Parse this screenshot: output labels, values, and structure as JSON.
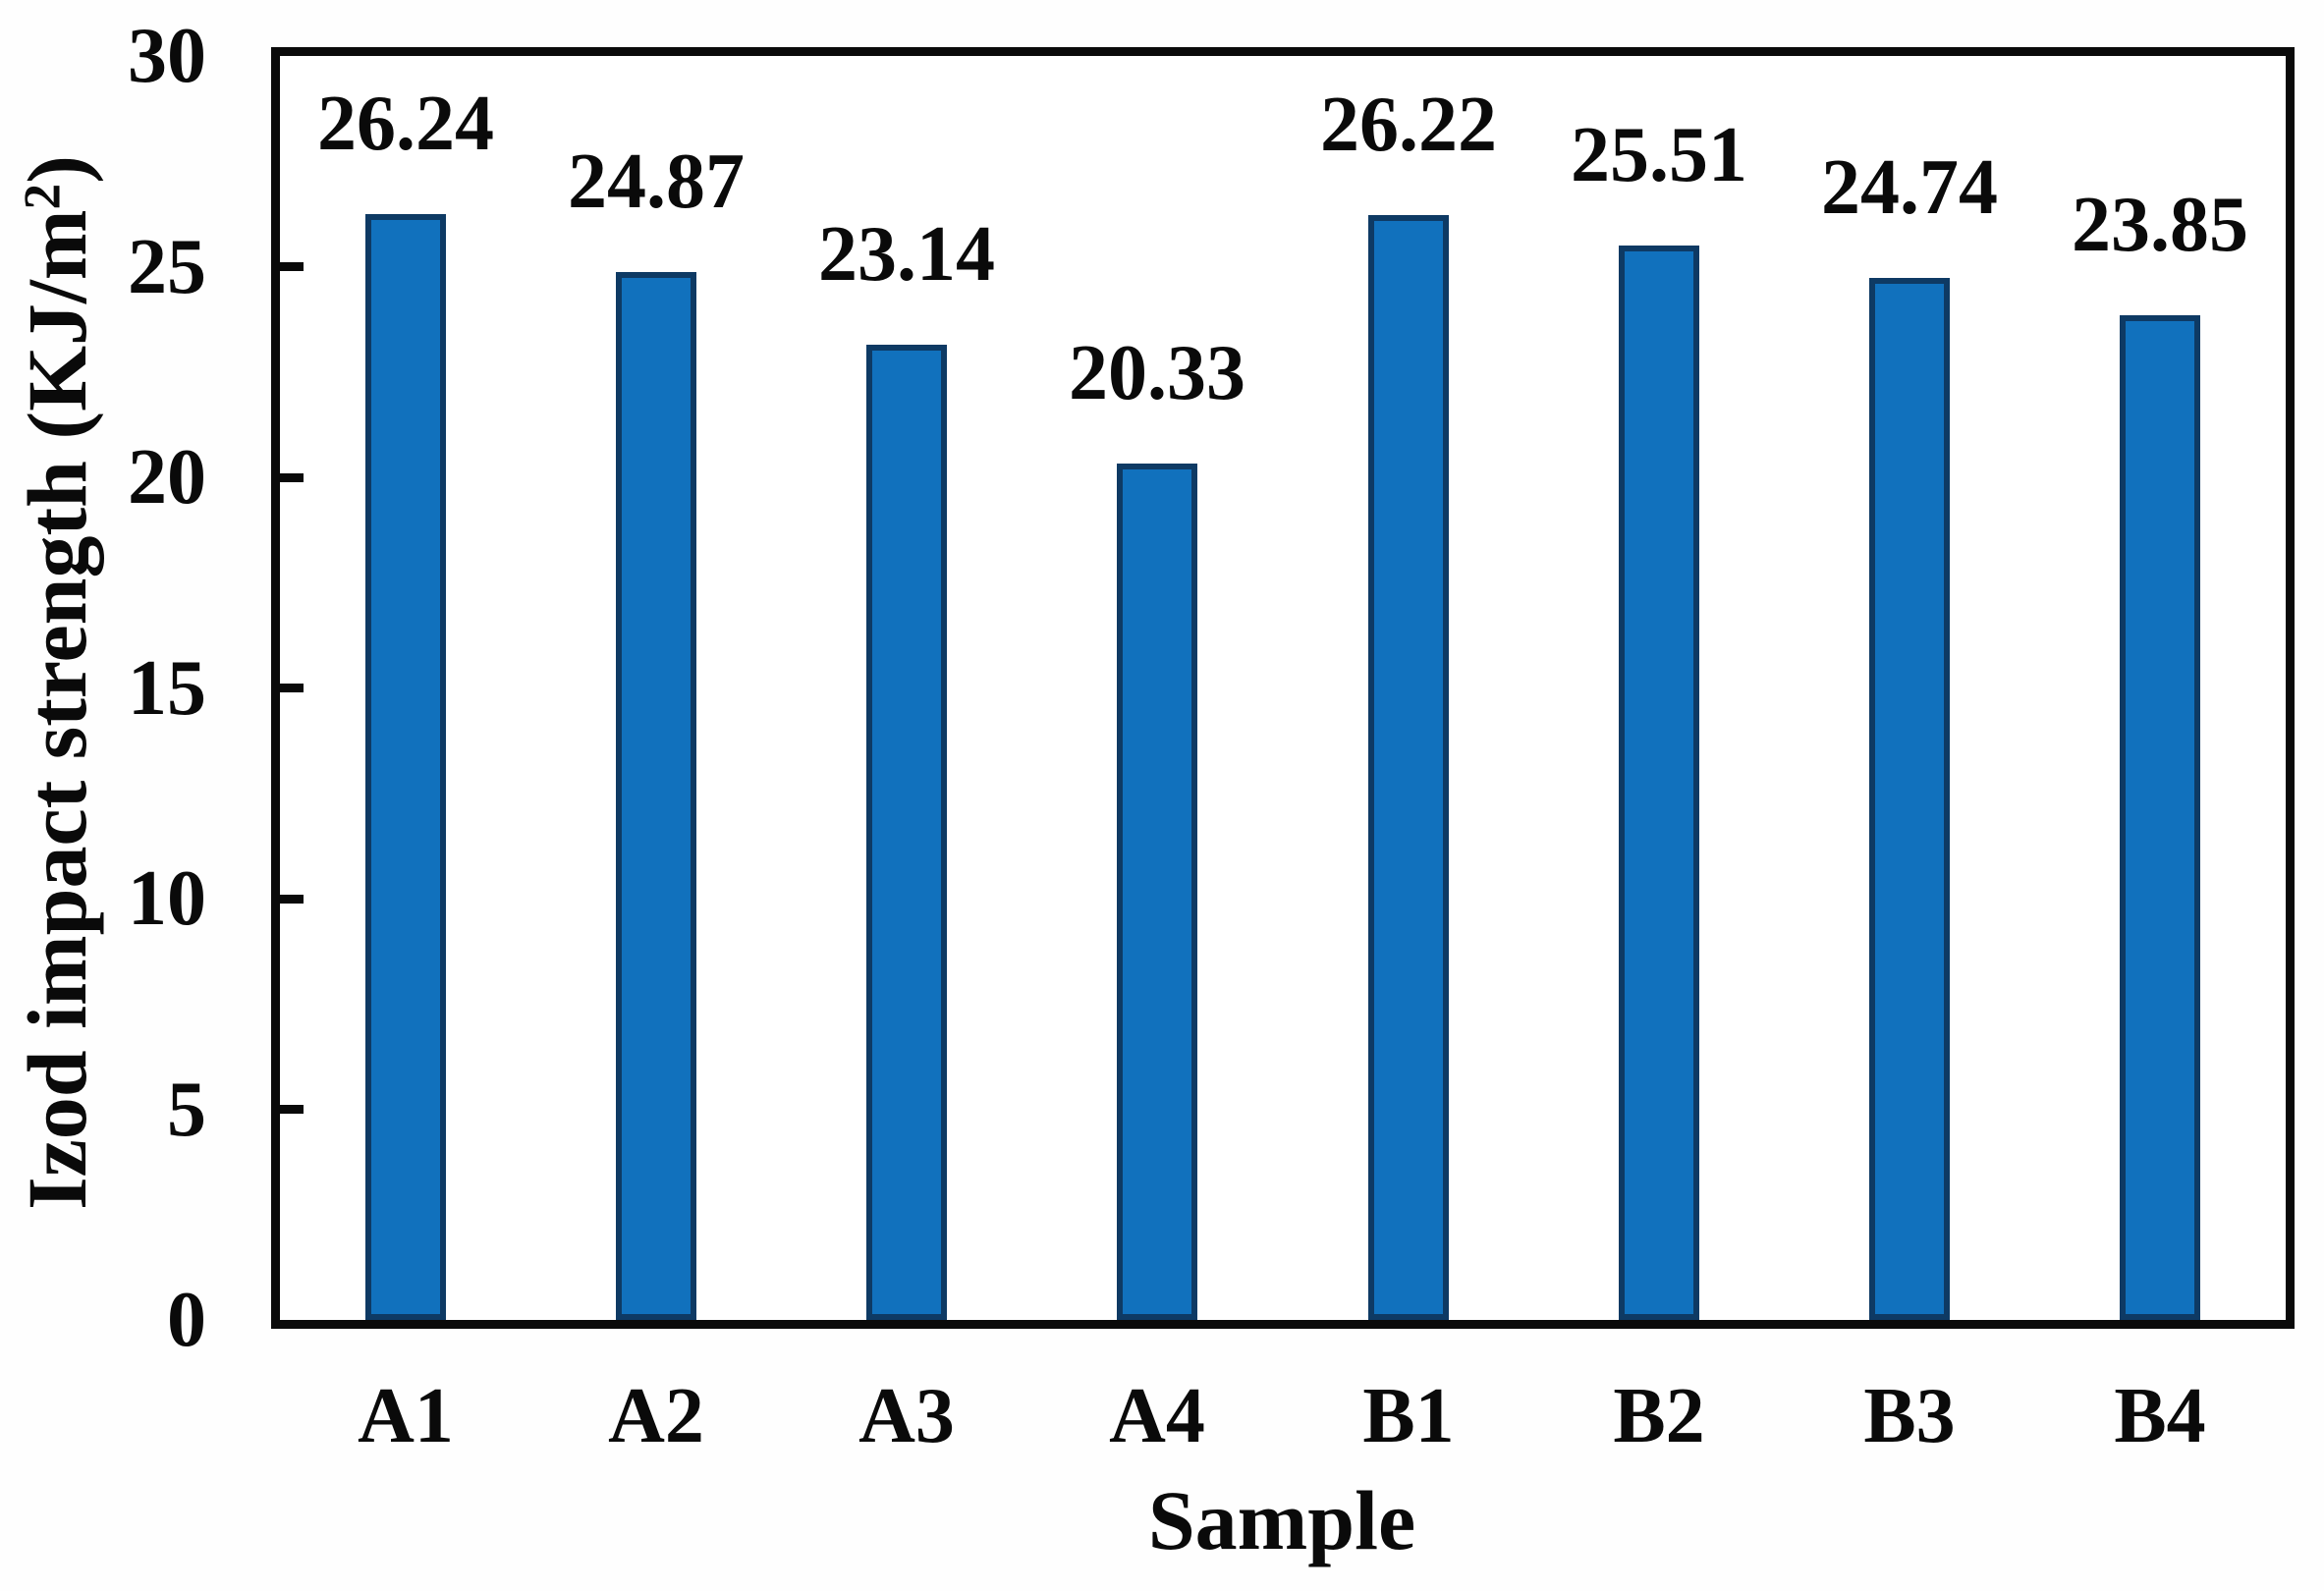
{
  "chart_data": {
    "type": "bar",
    "categories": [
      "A1",
      "A2",
      "A3",
      "A4",
      "B1",
      "B2",
      "B3",
      "B4"
    ],
    "values": [
      26.24,
      24.87,
      23.14,
      20.33,
      26.22,
      25.51,
      24.74,
      23.85
    ],
    "data_labels": [
      "26.24",
      "24.87",
      "23.14",
      "20.33",
      "26.22",
      "25.51",
      "24.74",
      "23.85"
    ],
    "title": "",
    "xlabel": "Sample",
    "ylabel": "Izod impact strength (KJ/m²)",
    "ylim": [
      0,
      30
    ],
    "yticks": [
      0,
      5,
      10,
      15,
      20,
      25,
      30
    ],
    "grid": false,
    "legend": false
  },
  "y_axis": {
    "title_prefix": "Izod impact strength (KJ/m",
    "title_sup": "2",
    "title_suffix": ")"
  },
  "x_axis": {
    "title": "Sample"
  },
  "colors": {
    "bar_fill": "#1171BD",
    "bar_border": "#0E3A64",
    "axis": "#0A0A0A",
    "text": "#0A0A0A"
  }
}
